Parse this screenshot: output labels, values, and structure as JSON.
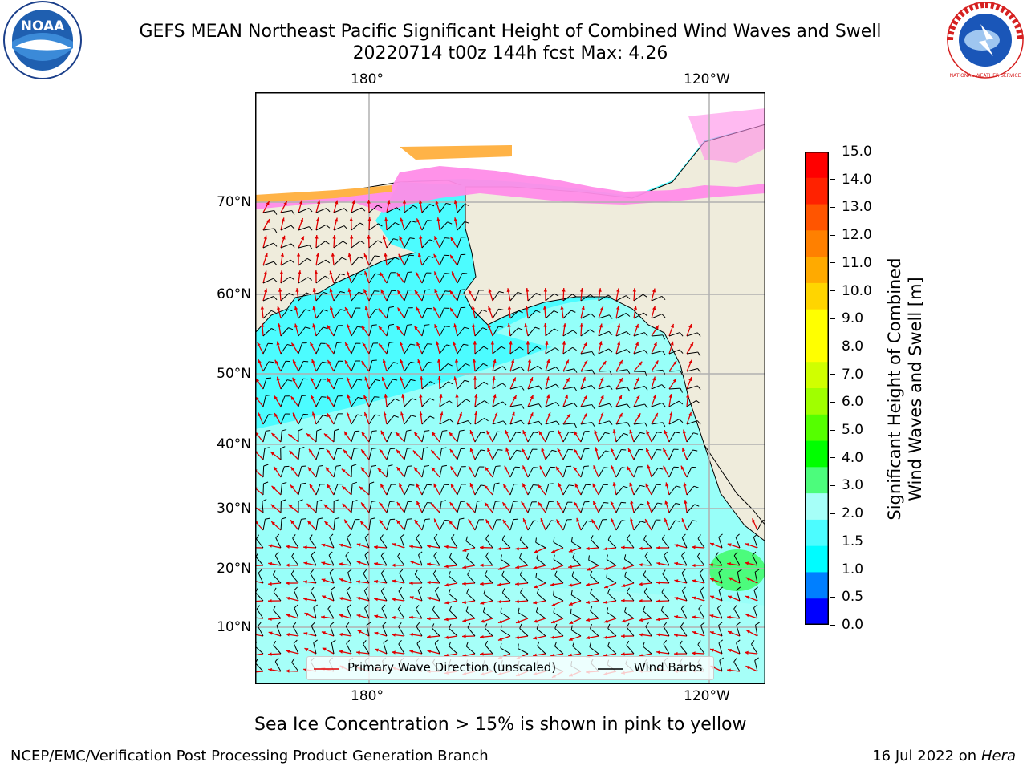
{
  "title": {
    "line1": "GEFS MEAN Northeast Pacific Significant Height of Combined Wind Waves and Swell",
    "line2": "20220714 t00z 144h fcst   Max: 4.26"
  },
  "logos": {
    "left": {
      "name": "NOAA",
      "text": "NOAA"
    },
    "right": {
      "name": "National Weather Service",
      "text": "NATIONAL WEATHER SERVICE"
    }
  },
  "map": {
    "lon_labels_top": [
      "180°",
      "120°W"
    ],
    "lon_labels_bottom": [
      "180°",
      "120°W"
    ],
    "lat_labels": [
      "70°N",
      "60°N",
      "50°N",
      "40°N",
      "30°N",
      "20°N",
      "10°N"
    ],
    "colors": {
      "land": "#efecdc",
      "ocean_low": "#4cfcff",
      "ocean_mid": "#a6fff8",
      "ice": "#ff8ce8",
      "wave_arrow": "#e00000",
      "barb": "#000000",
      "grid": "#b0b0b0"
    }
  },
  "legend": {
    "wave": "Primary Wave Direction (unscaled)",
    "barb": "Wind Barbs"
  },
  "colorbar": {
    "ticks": [
      "15.0",
      "14.0",
      "13.0",
      "12.0",
      "11.0",
      "10.0",
      "9.0",
      "8.0",
      "7.0",
      "6.0",
      "5.0",
      "4.0",
      "3.0",
      "2.0",
      "1.5",
      "1.0",
      "0.5",
      "0.0"
    ],
    "colors": [
      "#ff0000",
      "#ff2200",
      "#ff5500",
      "#ff8000",
      "#ffaa00",
      "#ffd500",
      "#ffff00",
      "#ffff00",
      "#d0ff00",
      "#a0ff00",
      "#55ff00",
      "#00ff00",
      "#4cfc7c",
      "#a6fff8",
      "#4cfcff",
      "#00fcff",
      "#007fff",
      "#0000ff"
    ],
    "label_line1": "Significant Height of Combined",
    "label_line2": "Wind Waves and Swell [m]"
  },
  "caption": "Sea Ice Concentration > 15% is shown in pink to yellow",
  "footer": {
    "left": "NCEP/EMC/Verification Post Processing Product Generation Branch",
    "right_date": "16 Jul 2022 on ",
    "right_host": "Hera"
  }
}
